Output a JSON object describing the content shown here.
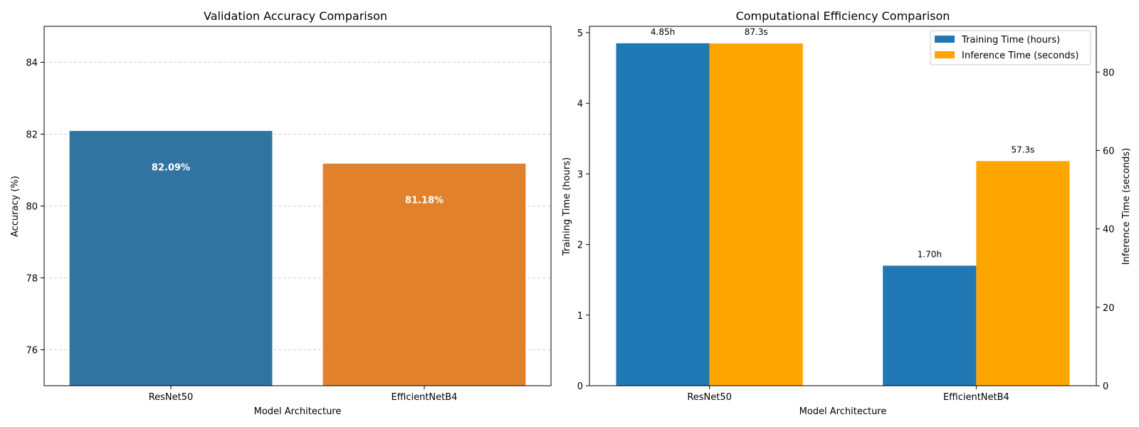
{
  "chart_data": [
    {
      "type": "bar",
      "title": "Validation Accuracy Comparison",
      "xlabel": "Model Architecture",
      "ylabel": "Accuracy (%)",
      "categories": [
        "ResNet50",
        "EfficientNetB4"
      ],
      "values": [
        82.09,
        81.18
      ],
      "value_labels": [
        "82.09%",
        "81.18%"
      ],
      "bar_colors": [
        "#3274a1",
        "#e1812c"
      ],
      "ylim": [
        75,
        85
      ],
      "yticks": [
        76,
        78,
        80,
        82,
        84
      ],
      "ytick_labels": [
        "76",
        "78",
        "80",
        "82",
        "84"
      ],
      "grid": "y-dashed",
      "legend": "none"
    },
    {
      "type": "bar",
      "title": "Computational Efficiency Comparison",
      "xlabel": "Model Architecture",
      "ylabel": "Training Time (hours)",
      "y2label": "Inference Time (seconds)",
      "categories": [
        "ResNet50",
        "EfficientNetB4"
      ],
      "series": [
        {
          "name": "Training Time (hours)",
          "axis": "left",
          "color": "#1f77b4",
          "values": [
            4.85,
            1.7
          ],
          "value_labels": [
            "4.85h",
            "1.70h"
          ]
        },
        {
          "name": "Inference Time (seconds)",
          "axis": "right",
          "color": "#ffa500",
          "values": [
            87.3,
            57.3
          ],
          "value_labels": [
            "87.3s",
            "57.3s"
          ]
        }
      ],
      "ylim": [
        0,
        5.09
      ],
      "yticks": [
        0,
        1,
        2,
        3,
        4,
        5
      ],
      "ytick_labels": [
        "0",
        "1",
        "2",
        "3",
        "4",
        "5"
      ],
      "y2lim": [
        0,
        91.665
      ],
      "y2ticks": [
        0,
        20,
        40,
        60,
        80
      ],
      "y2tick_labels": [
        "0",
        "20",
        "40",
        "60",
        "80"
      ],
      "grid": "none",
      "legend": "top-right"
    }
  ]
}
